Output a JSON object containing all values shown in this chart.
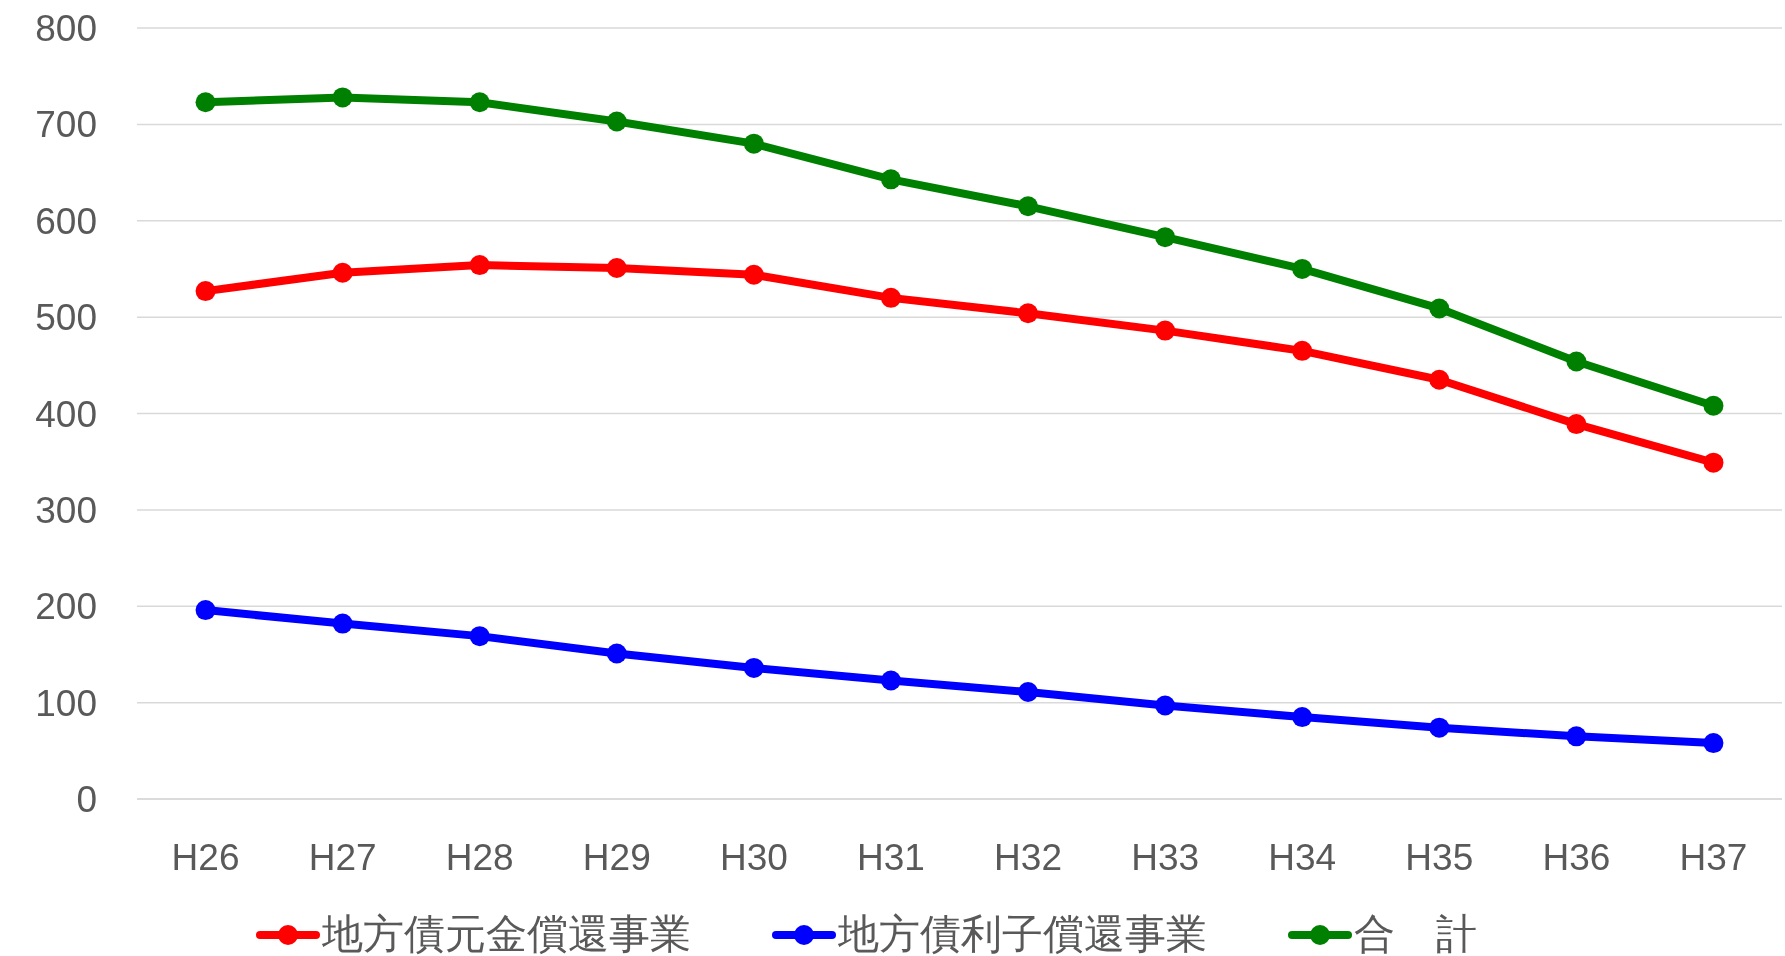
{
  "chart_data": {
    "type": "line",
    "categories": [
      "H26",
      "H27",
      "H28",
      "H29",
      "H30",
      "H31",
      "H32",
      "H33",
      "H34",
      "H35",
      "H36",
      "H37"
    ],
    "series": [
      {
        "name": "地方債元金償還事業",
        "color": "#ff0000",
        "values": [
          527,
          546,
          554,
          551,
          544,
          520,
          504,
          486,
          465,
          435,
          389,
          349
        ]
      },
      {
        "name": "地方債利子償還事業",
        "color": "#0000ff",
        "values": [
          196,
          182,
          169,
          151,
          136,
          123,
          111,
          97,
          85,
          74,
          65,
          58
        ]
      },
      {
        "name": "合　計",
        "color": "#008000",
        "values": [
          723,
          728,
          723,
          703,
          680,
          643,
          615,
          583,
          550,
          509,
          454,
          408
        ]
      }
    ],
    "ylim": [
      0,
      800
    ],
    "yticks": [
      0,
      100,
      200,
      300,
      400,
      500,
      600,
      700,
      800
    ],
    "grid": "y",
    "legend": "bottom",
    "marker": "circle",
    "line_style": "solid"
  }
}
